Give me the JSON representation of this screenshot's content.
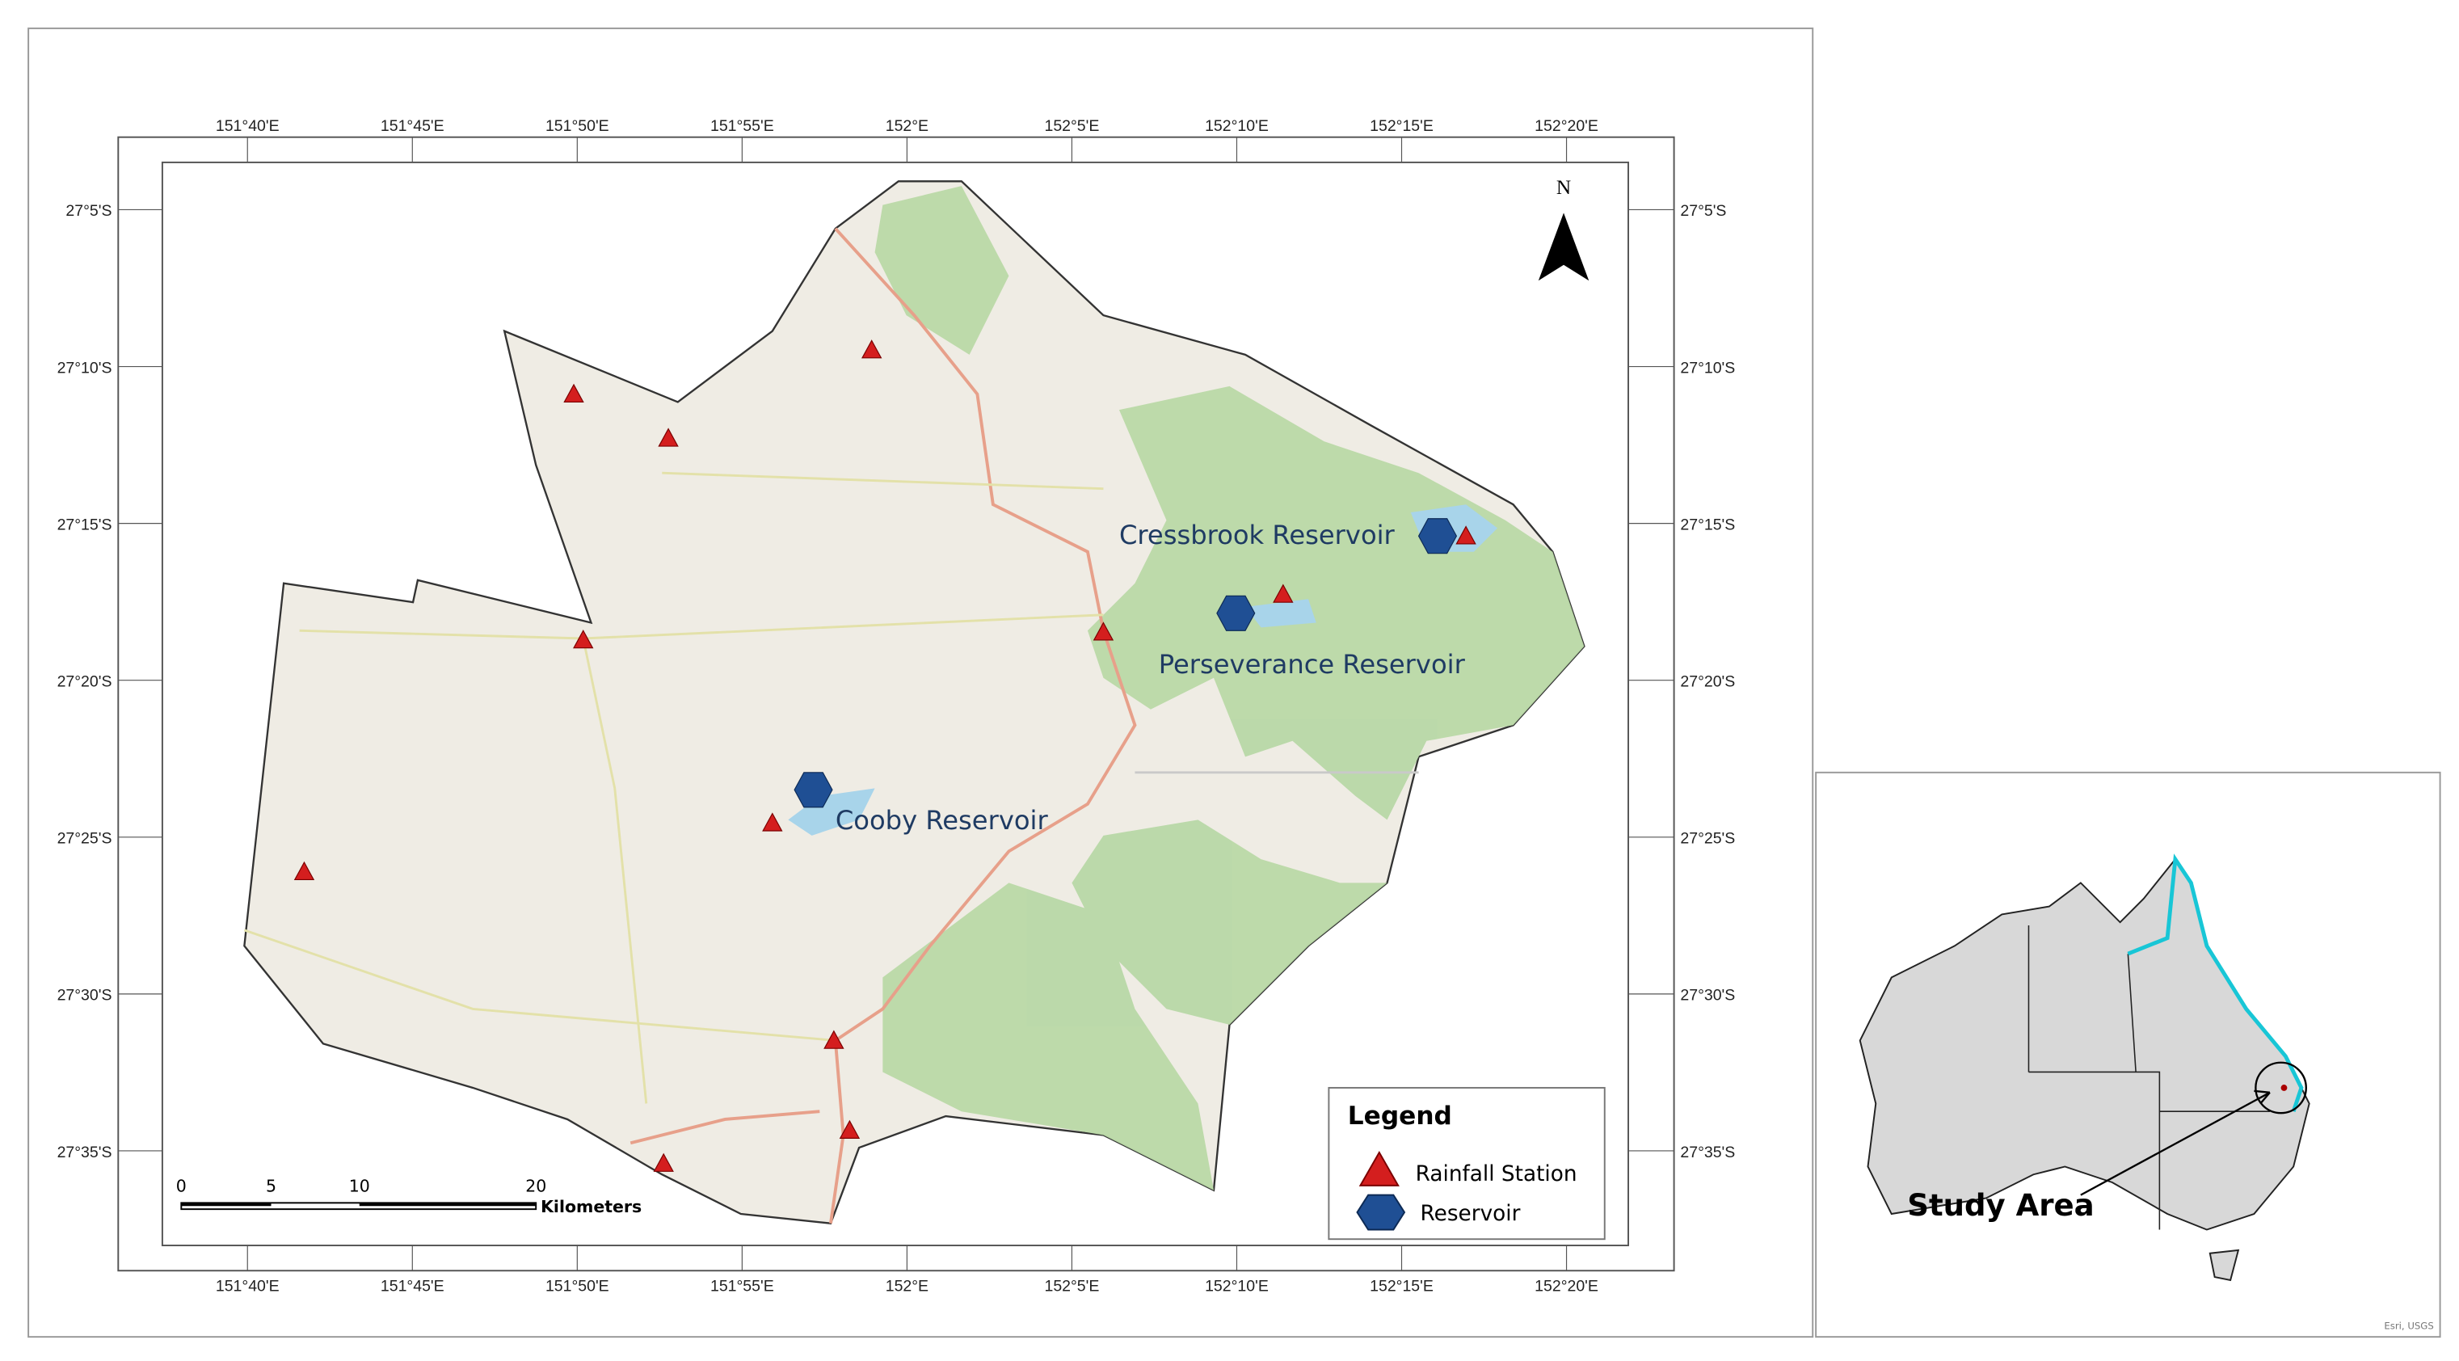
{
  "map": {
    "longitude_labels": [
      "151°40'E",
      "151°45'E",
      "151°50'E",
      "151°55'E",
      "152°E",
      "152°5'E",
      "152°10'E",
      "152°15'E",
      "152°20'E"
    ],
    "latitude_labels": [
      "27°5'S",
      "27°10'S",
      "27°15'S",
      "27°20'S",
      "27°25'S",
      "27°30'S",
      "27°35'S"
    ],
    "north_arrow": "N",
    "reservoir_labels": [
      "Cressbrook Reservoir",
      "Perseverance Reservoir",
      "Cooby Reservoir"
    ],
    "legend": {
      "title": "Legend",
      "items": [
        "Rainfall Station",
        "Reservoir"
      ]
    },
    "scale_bar": {
      "labels": [
        "0",
        "5",
        "10",
        "20"
      ],
      "unit": "Kilometers"
    },
    "inset": {
      "label": "Study Area",
      "credit": "Esri, USGS"
    }
  }
}
